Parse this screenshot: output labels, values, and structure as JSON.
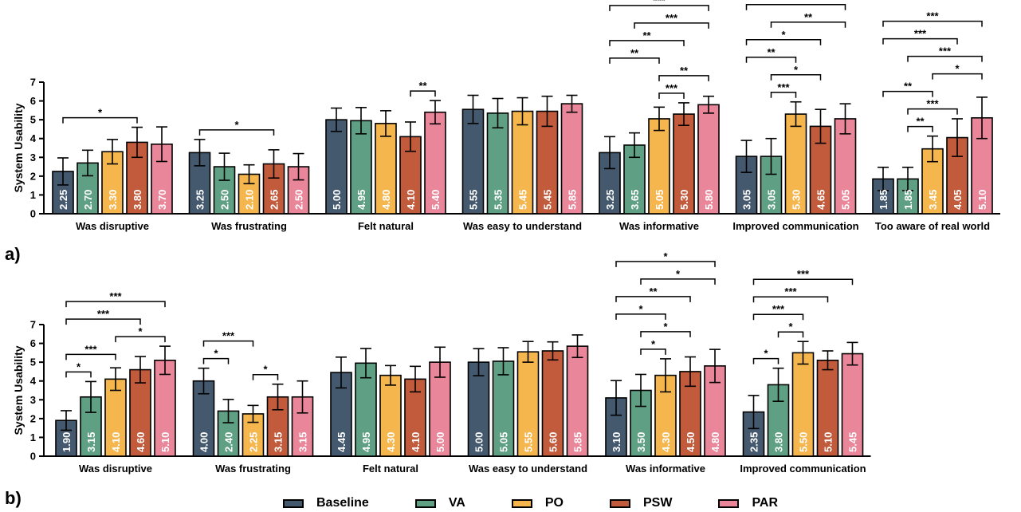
{
  "panel_labels": [
    "a)",
    "b)"
  ],
  "colors": {
    "Baseline": "#44596e",
    "VA": "#5fa084",
    "PO": "#f6b64e",
    "PSW": "#c25a3c",
    "PAR": "#e9869a",
    "axis": "#000000",
    "value_text": "#ffffff"
  },
  "legend": [
    {
      "name": "Baseline",
      "color_key": "Baseline"
    },
    {
      "name": "VA",
      "color_key": "VA"
    },
    {
      "name": "PO",
      "color_key": "PO"
    },
    {
      "name": "PSW",
      "color_key": "PSW"
    },
    {
      "name": "PAR",
      "color_key": "PAR"
    }
  ],
  "chart_data": [
    {
      "type": "bar",
      "panel": "a)",
      "ylabel": "System Usability",
      "ylim": [
        0,
        7
      ],
      "yticks": [
        0,
        1,
        2,
        3,
        4,
        5,
        6,
        7
      ],
      "series_names": [
        "Baseline",
        "VA",
        "PO",
        "PSW",
        "PAR"
      ],
      "categories": [
        {
          "label": "Was disruptive",
          "values": [
            2.25,
            2.7,
            3.3,
            3.8,
            3.7
          ],
          "value_labels": [
            "2.25",
            "2.70",
            "3.30",
            "3.80",
            "3.70"
          ],
          "errors": [
            0.72,
            0.68,
            0.65,
            0.8,
            0.92
          ],
          "significance": [
            {
              "from": 0,
              "to": 3,
              "stars": "*"
            }
          ]
        },
        {
          "label": "Was frustrating",
          "values": [
            3.25,
            2.5,
            2.1,
            2.65,
            2.5
          ],
          "value_labels": [
            "3.25",
            "2.50",
            "2.10",
            "2.65",
            "2.50"
          ],
          "errors": [
            0.7,
            0.72,
            0.5,
            0.75,
            0.7
          ],
          "significance": [
            {
              "from": 0,
              "to": 3,
              "stars": "*"
            }
          ]
        },
        {
          "label": "Felt natural",
          "values": [
            5.0,
            4.95,
            4.8,
            4.1,
            5.4
          ],
          "value_labels": [
            "5.00",
            "4.95",
            "4.80",
            "4.10",
            "5.40"
          ],
          "errors": [
            0.62,
            0.7,
            0.68,
            0.78,
            0.62
          ],
          "significance": [
            {
              "from": 3,
              "to": 4,
              "stars": "**"
            }
          ]
        },
        {
          "label": "Was easy to understand",
          "values": [
            5.55,
            5.35,
            5.45,
            5.45,
            5.85
          ],
          "value_labels": [
            "5.55",
            "5.35",
            "5.45",
            "5.45",
            "5.85"
          ],
          "errors": [
            0.75,
            0.78,
            0.72,
            0.8,
            0.45
          ],
          "significance": []
        },
        {
          "label": "Was informative",
          "values": [
            3.25,
            3.65,
            5.05,
            5.3,
            5.8
          ],
          "value_labels": [
            "3.25",
            "3.65",
            "5.05",
            "5.30",
            "5.80"
          ],
          "errors": [
            0.85,
            0.65,
            0.62,
            0.6,
            0.45
          ],
          "significance": [
            {
              "from": 2,
              "to": 3,
              "stars": "***"
            },
            {
              "from": 2,
              "to": 4,
              "stars": "**"
            },
            {
              "from": 0,
              "to": 2,
              "stars": "**"
            },
            {
              "from": 0,
              "to": 3,
              "stars": "**"
            },
            {
              "from": 1,
              "to": 4,
              "stars": "***"
            },
            {
              "from": 0,
              "to": 4,
              "stars": "***"
            }
          ]
        },
        {
          "label": "Improved communication",
          "values": [
            3.05,
            3.05,
            5.3,
            4.65,
            5.05
          ],
          "value_labels": [
            "3.05",
            "3.05",
            "5.30",
            "4.65",
            "5.05"
          ],
          "errors": [
            0.85,
            0.95,
            0.65,
            0.9,
            0.8
          ],
          "significance": [
            {
              "from": 1,
              "to": 2,
              "stars": "***"
            },
            {
              "from": 1,
              "to": 3,
              "stars": "*"
            },
            {
              "from": 0,
              "to": 2,
              "stars": "**"
            },
            {
              "from": 0,
              "to": 3,
              "stars": "*"
            },
            {
              "from": 1,
              "to": 4,
              "stars": "**"
            },
            {
              "from": 0,
              "to": 4,
              "stars": "**"
            }
          ]
        },
        {
          "label": "Too aware of real world",
          "values": [
            1.85,
            1.85,
            3.45,
            4.05,
            5.1
          ],
          "value_labels": [
            "1.85",
            "1.85",
            "3.45",
            "4.05",
            "5.10"
          ],
          "errors": [
            0.62,
            0.62,
            0.68,
            1.0,
            1.1
          ],
          "significance": [
            {
              "from": 1,
              "to": 2,
              "stars": "**"
            },
            {
              "from": 1,
              "to": 3,
              "stars": "***"
            },
            {
              "from": 0,
              "to": 2,
              "stars": "**"
            },
            {
              "from": 2,
              "to": 4,
              "stars": "*"
            },
            {
              "from": 1,
              "to": 4,
              "stars": "***"
            },
            {
              "from": 0,
              "to": 3,
              "stars": "***"
            },
            {
              "from": 0,
              "to": 4,
              "stars": "***"
            }
          ]
        }
      ]
    },
    {
      "type": "bar",
      "panel": "b)",
      "ylabel": "System Usability",
      "ylim": [
        0,
        7
      ],
      "yticks": [
        0,
        1,
        2,
        3,
        4,
        5,
        6,
        7
      ],
      "series_names": [
        "Baseline",
        "VA",
        "PO",
        "PSW",
        "PAR"
      ],
      "categories": [
        {
          "label": "Was disruptive",
          "values": [
            1.9,
            3.15,
            4.1,
            4.6,
            5.1
          ],
          "value_labels": [
            "1.90",
            "3.15",
            "4.10",
            "4.60",
            "5.10"
          ],
          "errors": [
            0.52,
            0.82,
            0.6,
            0.7,
            0.75
          ],
          "significance": [
            {
              "from": 0,
              "to": 1,
              "stars": "*"
            },
            {
              "from": 0,
              "to": 2,
              "stars": "***"
            },
            {
              "from": 2,
              "to": 4,
              "stars": "*"
            },
            {
              "from": 0,
              "to": 3,
              "stars": "***"
            },
            {
              "from": 0,
              "to": 4,
              "stars": "***"
            }
          ]
        },
        {
          "label": "Was frustrating",
          "values": [
            4.0,
            2.4,
            2.25,
            3.15,
            3.15
          ],
          "value_labels": [
            "4.00",
            "2.40",
            "2.25",
            "3.15",
            "3.15"
          ],
          "errors": [
            0.68,
            0.62,
            0.45,
            0.68,
            0.85
          ],
          "significance": [
            {
              "from": 0,
              "to": 1,
              "stars": "*"
            },
            {
              "from": 2,
              "to": 3,
              "stars": "*"
            },
            {
              "from": 0,
              "to": 2,
              "stars": "***"
            }
          ]
        },
        {
          "label": "Felt natural",
          "values": [
            4.45,
            4.95,
            4.3,
            4.1,
            5.0
          ],
          "value_labels": [
            "4.45",
            "4.95",
            "4.30",
            "4.10",
            "5.00"
          ],
          "errors": [
            0.82,
            0.78,
            0.52,
            0.68,
            0.8
          ],
          "significance": []
        },
        {
          "label": "Was easy to understand",
          "values": [
            5.0,
            5.05,
            5.55,
            5.6,
            5.85
          ],
          "value_labels": [
            "5.00",
            "5.05",
            "5.55",
            "5.60",
            "5.85"
          ],
          "errors": [
            0.72,
            0.72,
            0.55,
            0.48,
            0.6
          ],
          "significance": []
        },
        {
          "label": "Was informative",
          "values": [
            3.1,
            3.5,
            4.3,
            4.5,
            4.8
          ],
          "value_labels": [
            "3.10",
            "3.50",
            "4.30",
            "4.50",
            "4.80"
          ],
          "errors": [
            0.92,
            0.85,
            0.88,
            0.78,
            0.88
          ],
          "significance": [
            {
              "from": 1,
              "to": 2,
              "stars": "*"
            },
            {
              "from": 1,
              "to": 3,
              "stars": "*"
            },
            {
              "from": 0,
              "to": 2,
              "stars": "*"
            },
            {
              "from": 0,
              "to": 3,
              "stars": "**"
            },
            {
              "from": 1,
              "to": 4,
              "stars": "*"
            },
            {
              "from": 0,
              "to": 4,
              "stars": "*"
            }
          ]
        },
        {
          "label": "Improved communication",
          "values": [
            2.35,
            3.8,
            5.5,
            5.1,
            5.45
          ],
          "value_labels": [
            "2.35",
            "3.80",
            "5.50",
            "5.10",
            "5.45"
          ],
          "errors": [
            0.88,
            0.88,
            0.6,
            0.5,
            0.6
          ],
          "significance": [
            {
              "from": 0,
              "to": 1,
              "stars": "*"
            },
            {
              "from": 1,
              "to": 2,
              "stars": "*"
            },
            {
              "from": 0,
              "to": 2,
              "stars": "***"
            },
            {
              "from": 0,
              "to": 3,
              "stars": "***"
            },
            {
              "from": 0,
              "to": 4,
              "stars": "***"
            }
          ]
        }
      ]
    }
  ]
}
